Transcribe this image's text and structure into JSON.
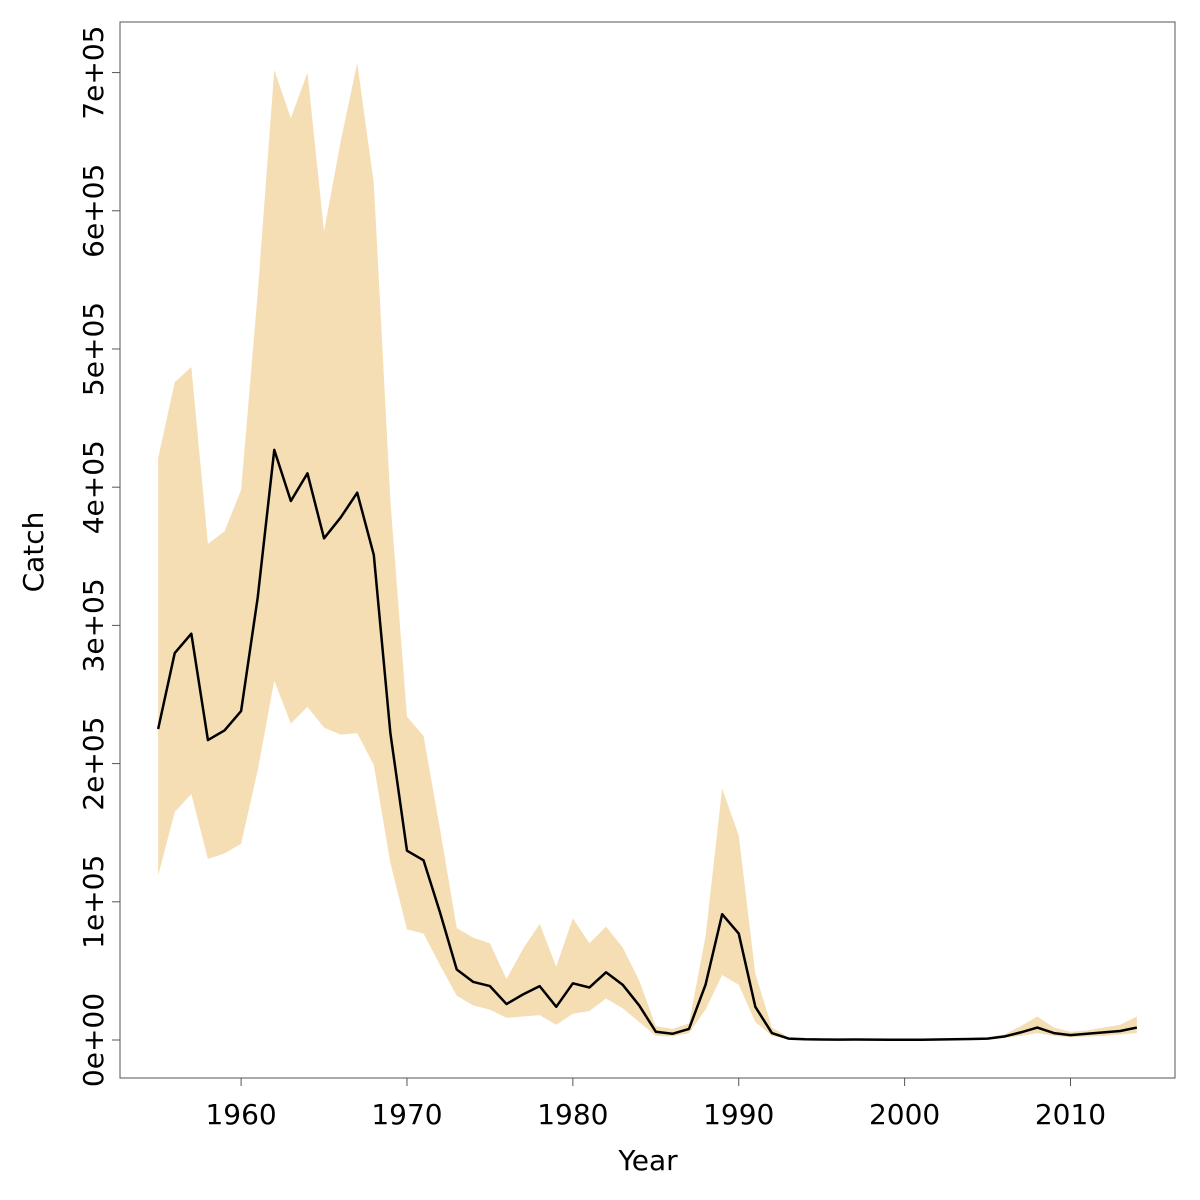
{
  "chart_data": {
    "type": "line_band",
    "xlabel": "Year",
    "ylabel": "Catch",
    "x": [
      1955,
      1956,
      1957,
      1958,
      1959,
      1960,
      1961,
      1962,
      1963,
      1964,
      1965,
      1966,
      1967,
      1968,
      1969,
      1970,
      1971,
      1972,
      1973,
      1974,
      1975,
      1976,
      1977,
      1978,
      1979,
      1980,
      1981,
      1982,
      1983,
      1984,
      1985,
      1986,
      1987,
      1988,
      1989,
      1990,
      1991,
      1992,
      1993,
      1994,
      1995,
      1996,
      1997,
      1998,
      1999,
      2000,
      2001,
      2002,
      2003,
      2004,
      2005,
      2006,
      2007,
      2008,
      2009,
      2010,
      2011,
      2012,
      2013,
      2014
    ],
    "values": [
      225000,
      280000,
      294000,
      217000,
      224000,
      238000,
      320000,
      427000,
      390000,
      410000,
      363000,
      378000,
      396000,
      351000,
      222000,
      137000,
      130000,
      92000,
      51000,
      42000,
      39000,
      26000,
      33000,
      39000,
      24000,
      41000,
      38000,
      49000,
      40000,
      25000,
      6000,
      4500,
      8000,
      40000,
      91000,
      77000,
      24000,
      5000,
      1000,
      500,
      400,
      300,
      400,
      300,
      200,
      200,
      200,
      400,
      500,
      700,
      1000,
      2500,
      5500,
      9000,
      5000,
      3500,
      4500,
      5500,
      6500,
      9000
    ],
    "upper": [
      421000,
      476000,
      487000,
      359000,
      368000,
      398000,
      540000,
      702000,
      667000,
      700000,
      585000,
      650000,
      707000,
      620000,
      390000,
      234000,
      220000,
      152000,
      81000,
      74000,
      70000,
      44000,
      66000,
      84000,
      53000,
      88000,
      70000,
      82000,
      67000,
      43000,
      10000,
      8000,
      12000,
      75000,
      182000,
      148000,
      48000,
      9000,
      2000,
      1200,
      1000,
      1000,
      1000,
      1000,
      1000,
      1000,
      1000,
      1200,
      1300,
      1500,
      2000,
      4000,
      10000,
      17000,
      9000,
      6000,
      7000,
      9000,
      11000,
      17000
    ],
    "lower": [
      119000,
      165000,
      178000,
      131000,
      135000,
      142000,
      195000,
      260000,
      229000,
      241000,
      226000,
      221000,
      222000,
      199000,
      128000,
      80000,
      77000,
      54000,
      32000,
      25000,
      22000,
      16000,
      17000,
      18000,
      11000,
      19000,
      21000,
      30000,
      23000,
      13000,
      3000,
      2500,
      5000,
      22000,
      47000,
      40000,
      13000,
      3000,
      500,
      200,
      200,
      100,
      200,
      100,
      100,
      100,
      100,
      200,
      200,
      300,
      500,
      1500,
      3000,
      5000,
      3000,
      2000,
      2500,
      3000,
      4000,
      5000
    ],
    "color": "#000000",
    "band_color": "#f5deb3",
    "xlim": [
      1952.7,
      2016.3
    ],
    "xticks": [
      1960,
      1970,
      1980,
      1990,
      2000,
      2010
    ],
    "ylim": [
      -27500,
      736600
    ],
    "yticks": [
      {
        "value": 0,
        "label": "0e+00"
      },
      {
        "value": 100000,
        "label": "1e+05"
      },
      {
        "value": 200000,
        "label": "2e+05"
      },
      {
        "value": 300000,
        "label": "3e+05"
      },
      {
        "value": 400000,
        "label": "4e+05"
      },
      {
        "value": 500000,
        "label": "5e+05"
      },
      {
        "value": 600000,
        "label": "6e+05"
      },
      {
        "value": 700000,
        "label": "7e+05"
      }
    ]
  }
}
